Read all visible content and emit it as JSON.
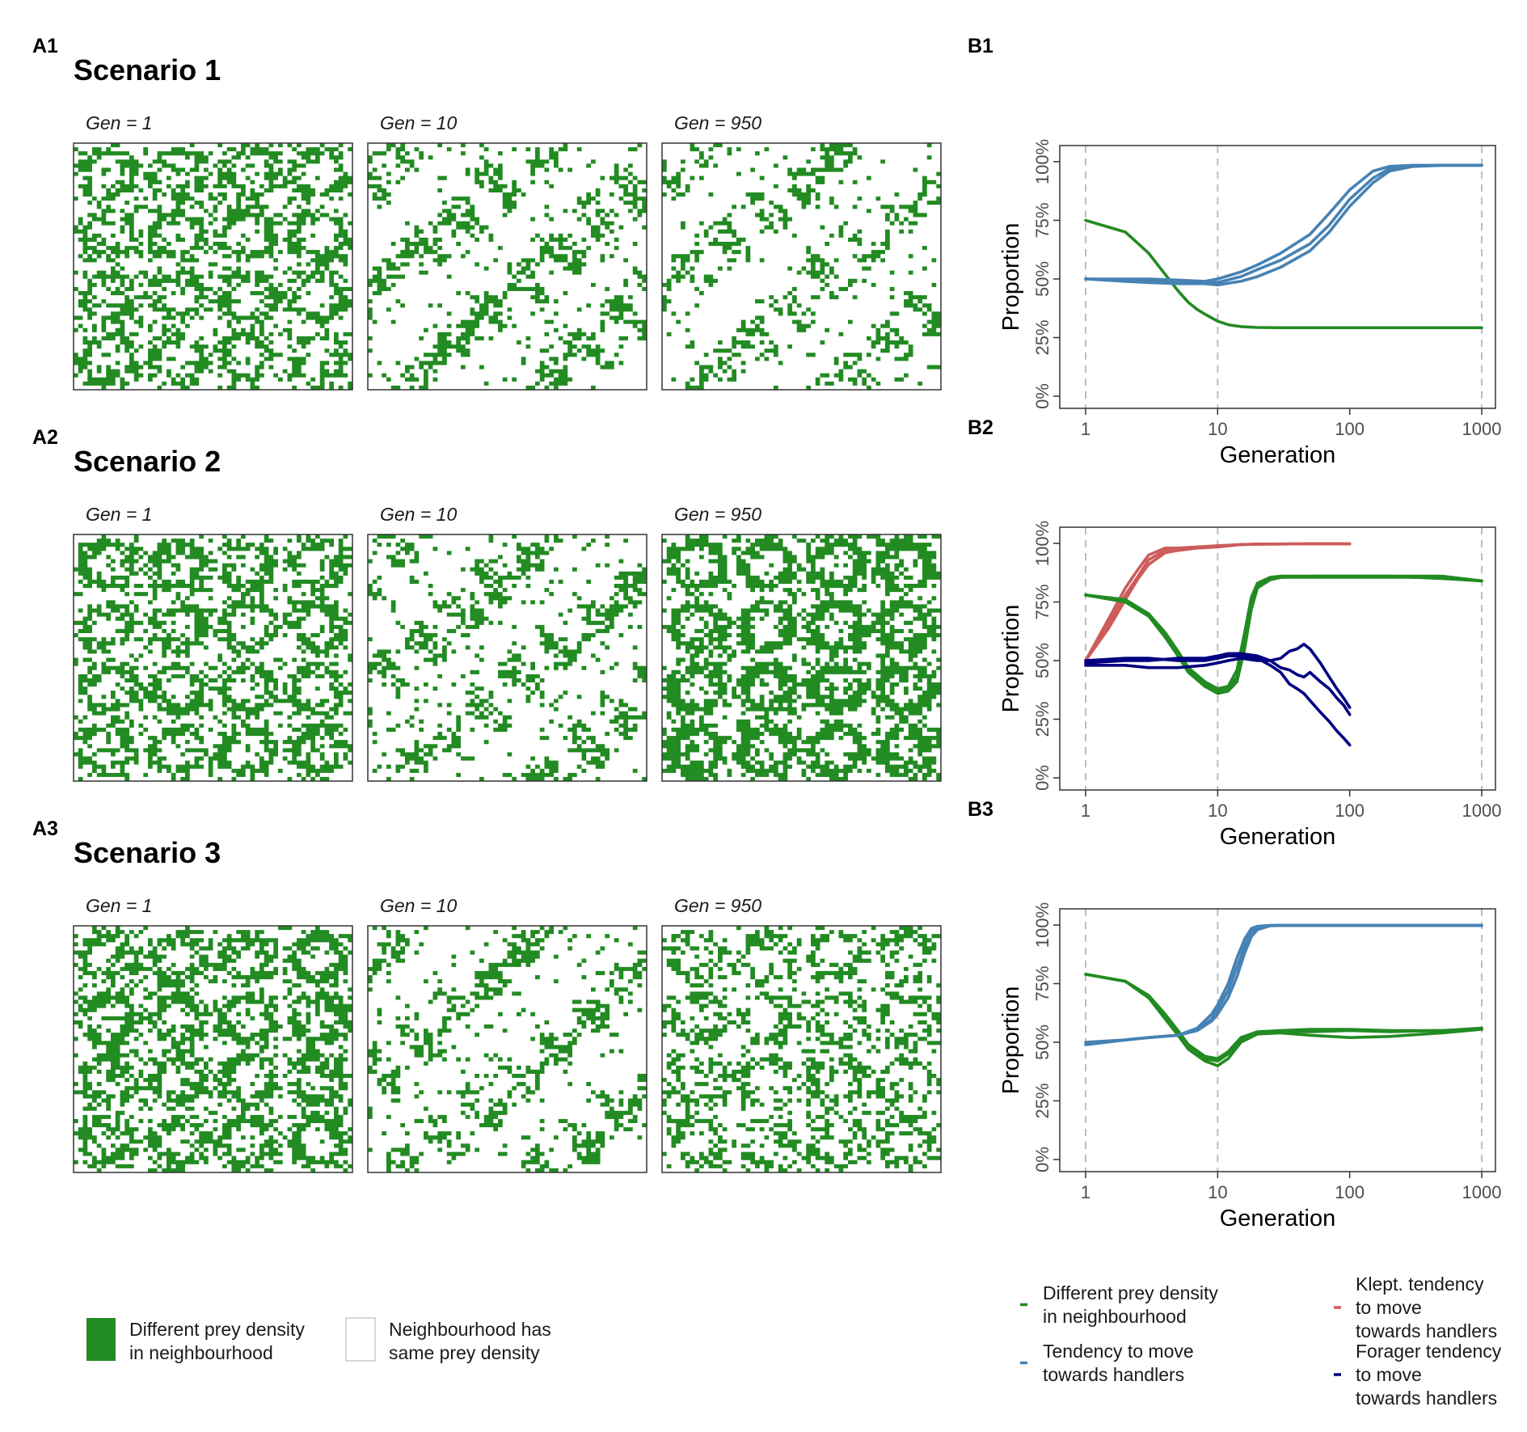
{
  "colors": {
    "green": "#228B22",
    "blue": "#4682B4",
    "red": "#CD5C5C",
    "navy": "#000080",
    "grid_border": "#333333",
    "vline": "#bdbdbd"
  },
  "scenarios": [
    {
      "letter": "A1",
      "title": "Scenario 1",
      "gens": [
        "Gen = 1",
        "Gen = 10",
        "Gen = 950"
      ],
      "densities": [
        0.5,
        0.17,
        0.14
      ],
      "patterns": [
        "ring",
        "scatter",
        "scatter"
      ]
    },
    {
      "letter": "A2",
      "title": "Scenario 2",
      "gens": [
        "Gen = 1",
        "Gen = 10",
        "Gen = 950"
      ],
      "densities": [
        0.52,
        0.17,
        0.62
      ],
      "patterns": [
        "ring",
        "scatter",
        "ring"
      ]
    },
    {
      "letter": "A3",
      "title": "Scenario 3",
      "gens": [
        "Gen = 1",
        "Gen = 10",
        "Gen = 950"
      ],
      "densities": [
        0.55,
        0.16,
        0.4
      ],
      "patterns": [
        "ring",
        "scatter",
        "ring"
      ]
    }
  ],
  "grid_legend": [
    {
      "label_lines": [
        "Different prey density",
        "in neighbourhood"
      ],
      "color": "#228B22"
    },
    {
      "label_lines": [
        "Neighbourhood has",
        "same prey density"
      ],
      "color": "#ffffff"
    }
  ],
  "chart_data": [
    {
      "panel": "B1",
      "type": "line",
      "x_scale": "log10",
      "xlim": [
        1,
        1000
      ],
      "ylim": [
        0,
        1
      ],
      "xticks": [
        1,
        10,
        100,
        1000
      ],
      "xtick_labels": [
        "1",
        "10",
        "100",
        "1000"
      ],
      "yticks": [
        0,
        0.25,
        0.5,
        0.75,
        1
      ],
      "ytick_labels": [
        "0%",
        "25%",
        "50%",
        "75%",
        "100%"
      ],
      "xlabel": "Generation",
      "ylabel": "Proportion",
      "vlines": [
        1,
        10,
        1000
      ],
      "series": [
        {
          "color": "#228B22",
          "x": [
            1,
            2,
            3,
            4,
            5,
            6,
            7,
            8,
            10,
            12,
            15,
            20,
            30,
            50,
            100,
            200,
            500,
            1000
          ],
          "y": [
            0.75,
            0.7,
            0.61,
            0.52,
            0.45,
            0.4,
            0.37,
            0.35,
            0.32,
            0.305,
            0.297,
            0.293,
            0.292,
            0.292,
            0.292,
            0.292,
            0.292,
            0.292
          ]
        },
        {
          "color": "#4682B4",
          "x": [
            1,
            2,
            3,
            5,
            8,
            10,
            15,
            20,
            30,
            50,
            70,
            100,
            150,
            200,
            300,
            500,
            1000
          ],
          "y": [
            0.5,
            0.5,
            0.5,
            0.495,
            0.49,
            0.5,
            0.53,
            0.56,
            0.61,
            0.69,
            0.78,
            0.88,
            0.96,
            0.98,
            0.985,
            0.985,
            0.985
          ]
        },
        {
          "color": "#4682B4",
          "x": [
            1,
            2,
            3,
            5,
            8,
            10,
            15,
            20,
            30,
            50,
            70,
            100,
            150,
            200,
            300,
            500,
            1000
          ],
          "y": [
            0.5,
            0.495,
            0.49,
            0.49,
            0.49,
            0.485,
            0.51,
            0.54,
            0.58,
            0.65,
            0.73,
            0.84,
            0.93,
            0.97,
            0.98,
            0.985,
            0.985
          ]
        },
        {
          "color": "#4682B4",
          "x": [
            1,
            2,
            3,
            5,
            8,
            10,
            15,
            20,
            30,
            50,
            70,
            100,
            150,
            200,
            300,
            500,
            1000
          ],
          "y": [
            0.5,
            0.49,
            0.485,
            0.48,
            0.48,
            0.475,
            0.49,
            0.51,
            0.55,
            0.62,
            0.7,
            0.81,
            0.91,
            0.96,
            0.98,
            0.985,
            0.985
          ]
        }
      ]
    },
    {
      "panel": "B2",
      "type": "line",
      "x_scale": "log10",
      "xlim": [
        1,
        1000
      ],
      "ylim": [
        0,
        1
      ],
      "xticks": [
        1,
        10,
        100,
        1000
      ],
      "xtick_labels": [
        "1",
        "10",
        "100",
        "1000"
      ],
      "yticks": [
        0,
        0.25,
        0.5,
        0.75,
        1
      ],
      "ytick_labels": [
        "0%",
        "25%",
        "50%",
        "75%",
        "100%"
      ],
      "xlabel": "Generation",
      "ylabel": "Proportion",
      "vlines": [
        1,
        10,
        1000
      ],
      "series": [
        {
          "color": "#CD5C5C",
          "x": [
            1,
            1.5,
            2,
            2.5,
            3,
            4,
            5,
            7,
            10,
            15,
            20,
            50,
            100
          ],
          "y": [
            0.5,
            0.66,
            0.78,
            0.86,
            0.93,
            0.97,
            0.975,
            0.98,
            0.99,
            0.995,
            0.997,
            0.998,
            0.998
          ]
        },
        {
          "color": "#CD5C5C",
          "x": [
            1,
            1.5,
            2,
            2.5,
            3,
            4,
            5,
            7,
            10,
            15,
            20,
            50,
            100
          ],
          "y": [
            0.5,
            0.68,
            0.81,
            0.89,
            0.95,
            0.98,
            0.98,
            0.985,
            0.99,
            0.995,
            0.997,
            0.998,
            0.998
          ]
        },
        {
          "color": "#CD5C5C",
          "x": [
            1,
            1.5,
            2,
            2.5,
            3,
            4,
            5,
            7,
            10,
            15,
            20,
            50,
            100
          ],
          "y": [
            0.5,
            0.64,
            0.76,
            0.85,
            0.91,
            0.96,
            0.97,
            0.98,
            0.985,
            0.995,
            0.997,
            0.998,
            0.998
          ]
        },
        {
          "color": "#228B22",
          "x": [
            1,
            2,
            3,
            4,
            5,
            6,
            8,
            10,
            12,
            14,
            16,
            18,
            20,
            25,
            30,
            50,
            100,
            200,
            500,
            1000
          ],
          "y": [
            0.78,
            0.76,
            0.7,
            0.62,
            0.54,
            0.47,
            0.41,
            0.38,
            0.39,
            0.46,
            0.62,
            0.77,
            0.83,
            0.855,
            0.86,
            0.86,
            0.86,
            0.86,
            0.86,
            0.84
          ]
        },
        {
          "color": "#228B22",
          "x": [
            1,
            2,
            3,
            4,
            5,
            6,
            8,
            10,
            12,
            14,
            16,
            18,
            20,
            25,
            30,
            50,
            100,
            200,
            500,
            1000
          ],
          "y": [
            0.78,
            0.75,
            0.69,
            0.61,
            0.53,
            0.46,
            0.4,
            0.37,
            0.38,
            0.43,
            0.58,
            0.74,
            0.82,
            0.85,
            0.855,
            0.86,
            0.86,
            0.86,
            0.85,
            0.84
          ]
        },
        {
          "color": "#228B22",
          "x": [
            1,
            2,
            3,
            4,
            5,
            6,
            8,
            10,
            12,
            14,
            16,
            18,
            20,
            25,
            30,
            50,
            100,
            200,
            500,
            1000
          ],
          "y": [
            0.78,
            0.75,
            0.69,
            0.6,
            0.52,
            0.45,
            0.39,
            0.36,
            0.37,
            0.41,
            0.55,
            0.72,
            0.81,
            0.845,
            0.855,
            0.855,
            0.855,
            0.855,
            0.855,
            0.84
          ]
        },
        {
          "color": "#000080",
          "x": [
            1,
            2,
            3,
            5,
            8,
            10,
            12,
            15,
            20,
            25,
            30,
            35,
            40,
            45,
            50,
            60,
            70,
            80,
            90,
            100
          ],
          "y": [
            0.5,
            0.51,
            0.51,
            0.5,
            0.5,
            0.51,
            0.52,
            0.52,
            0.51,
            0.48,
            0.45,
            0.4,
            0.38,
            0.36,
            0.33,
            0.28,
            0.24,
            0.2,
            0.17,
            0.14
          ]
        },
        {
          "color": "#000080",
          "x": [
            1,
            2,
            3,
            5,
            8,
            10,
            12,
            15,
            20,
            25,
            30,
            35,
            40,
            45,
            50,
            60,
            70,
            80,
            90,
            100
          ],
          "y": [
            0.49,
            0.5,
            0.5,
            0.51,
            0.51,
            0.52,
            0.53,
            0.53,
            0.52,
            0.5,
            0.47,
            0.46,
            0.44,
            0.43,
            0.45,
            0.41,
            0.38,
            0.34,
            0.31,
            0.27
          ]
        },
        {
          "color": "#000080",
          "x": [
            1,
            2,
            3,
            5,
            8,
            10,
            12,
            15,
            20,
            25,
            30,
            35,
            40,
            45,
            50,
            60,
            70,
            80,
            90,
            100
          ],
          "y": [
            0.48,
            0.48,
            0.47,
            0.47,
            0.48,
            0.49,
            0.5,
            0.51,
            0.5,
            0.5,
            0.51,
            0.54,
            0.55,
            0.57,
            0.55,
            0.49,
            0.43,
            0.38,
            0.34,
            0.3
          ]
        }
      ]
    },
    {
      "panel": "B3",
      "type": "line",
      "x_scale": "log10",
      "xlim": [
        1,
        1000
      ],
      "ylim": [
        0,
        1
      ],
      "xticks": [
        1,
        10,
        100,
        1000
      ],
      "xtick_labels": [
        "1",
        "10",
        "100",
        "1000"
      ],
      "yticks": [
        0,
        0.25,
        0.5,
        0.75,
        1
      ],
      "ytick_labels": [
        "0%",
        "25%",
        "50%",
        "75%",
        "100%"
      ],
      "xlabel": "Generation",
      "ylabel": "Proportion",
      "vlines": [
        1,
        10,
        1000
      ],
      "series": [
        {
          "color": "#228B22",
          "x": [
            1,
            2,
            3,
            4,
            5,
            6,
            8,
            10,
            12,
            15,
            20,
            30,
            50,
            100,
            200,
            500,
            1000
          ],
          "y": [
            0.79,
            0.76,
            0.69,
            0.6,
            0.53,
            0.47,
            0.42,
            0.4,
            0.43,
            0.5,
            0.535,
            0.54,
            0.53,
            0.52,
            0.525,
            0.54,
            0.555
          ]
        },
        {
          "color": "#228B22",
          "x": [
            1,
            2,
            3,
            4,
            5,
            6,
            8,
            10,
            12,
            15,
            20,
            30,
            50,
            100,
            200,
            500,
            1000
          ],
          "y": [
            0.79,
            0.76,
            0.69,
            0.61,
            0.54,
            0.48,
            0.43,
            0.42,
            0.45,
            0.51,
            0.54,
            0.545,
            0.545,
            0.55,
            0.545,
            0.55,
            0.555
          ]
        },
        {
          "color": "#228B22",
          "x": [
            1,
            2,
            3,
            4,
            5,
            6,
            8,
            10,
            12,
            15,
            20,
            30,
            50,
            100,
            200,
            500,
            1000
          ],
          "y": [
            0.79,
            0.76,
            0.7,
            0.62,
            0.55,
            0.49,
            0.44,
            0.43,
            0.46,
            0.52,
            0.545,
            0.55,
            0.555,
            0.555,
            0.55,
            0.55,
            0.56
          ]
        },
        {
          "color": "#4682B4",
          "x": [
            1,
            2,
            3,
            5,
            7,
            9,
            10,
            12,
            14,
            16,
            18,
            20,
            25,
            30,
            50,
            100,
            1000
          ],
          "y": [
            0.49,
            0.51,
            0.52,
            0.53,
            0.56,
            0.62,
            0.66,
            0.75,
            0.86,
            0.94,
            0.985,
            0.995,
            0.998,
            0.998,
            0.998,
            0.998,
            0.998
          ]
        },
        {
          "color": "#4682B4",
          "x": [
            1,
            2,
            3,
            5,
            7,
            9,
            10,
            12,
            14,
            16,
            18,
            20,
            25,
            30,
            50,
            100,
            1000
          ],
          "y": [
            0.49,
            0.51,
            0.52,
            0.53,
            0.55,
            0.6,
            0.64,
            0.72,
            0.82,
            0.91,
            0.97,
            0.99,
            0.998,
            0.998,
            0.998,
            0.998,
            0.998
          ]
        },
        {
          "color": "#4682B4",
          "x": [
            1,
            2,
            3,
            5,
            7,
            9,
            10,
            12,
            14,
            16,
            18,
            20,
            25,
            30,
            50,
            100,
            1000
          ],
          "y": [
            0.5,
            0.51,
            0.52,
            0.53,
            0.55,
            0.59,
            0.62,
            0.69,
            0.78,
            0.88,
            0.95,
            0.98,
            0.997,
            0.998,
            0.998,
            0.998,
            0.998
          ]
        }
      ]
    }
  ],
  "line_legend": {
    "col1": [
      {
        "color": "#228B22",
        "label_lines": [
          "Different prey density",
          "in neighbourhood"
        ]
      },
      {
        "color": "#4682B4",
        "label_lines": [
          "Tendency to move",
          "towards handlers"
        ]
      }
    ],
    "col2": [
      {
        "color": "#CD5C5C",
        "label_lines": [
          "Klept. tendency",
          "to move",
          "towards handlers"
        ]
      },
      {
        "color": "#000080",
        "label_lines": [
          "Forager tendency",
          "to move",
          "towards handlers"
        ]
      }
    ]
  }
}
